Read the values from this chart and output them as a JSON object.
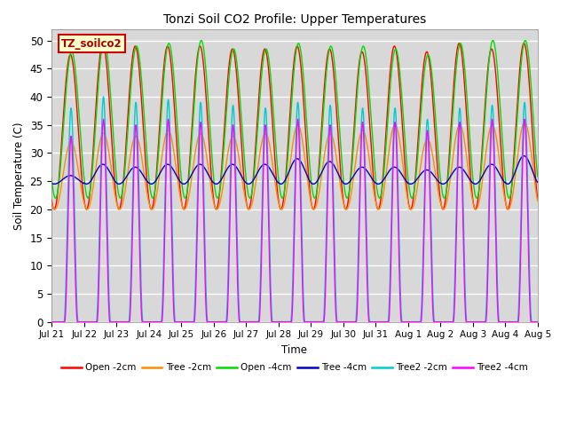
{
  "title": "Tonzi Soil CO2 Profile: Upper Temperatures",
  "xlabel": "Time",
  "ylabel": "Soil Temperature (C)",
  "ylim": [
    0,
    52
  ],
  "yticks": [
    0,
    5,
    10,
    15,
    20,
    25,
    30,
    35,
    40,
    45,
    50
  ],
  "background_color": "#d8d8d8",
  "series": [
    {
      "label": "Open -2cm",
      "color": "#ff0000"
    },
    {
      "label": "Tree -2cm",
      "color": "#ff8c00"
    },
    {
      "label": "Open -4cm",
      "color": "#00dd00"
    },
    {
      "label": "Tree -4cm",
      "color": "#0000cc"
    },
    {
      "label": "Tree2 -2cm",
      "color": "#00cccc"
    },
    {
      "label": "Tree2 -4cm",
      "color": "#ff00ff"
    }
  ],
  "xtick_labels": [
    "Jul 21",
    "Jul 22",
    "Jul 23",
    "Jul 24",
    "Jul 25",
    "Jul 26",
    "Jul 27",
    "Jul 28",
    "Jul 29",
    "Jul 30",
    "Jul 31",
    "Aug 1",
    "Aug 2",
    "Aug 3",
    "Aug 4",
    "Aug 5"
  ],
  "legend_label_box": "TZ_soilco2",
  "legend_label_box_facecolor": "#ffffcc",
  "legend_label_box_edgecolor": "#cc0000",
  "open2_peaks": [
    47.5,
    49.5,
    49.0,
    49.0,
    49.0,
    48.5,
    48.5,
    49.0,
    48.5,
    48.0,
    49.0,
    48.0,
    49.5,
    48.5,
    49.5
  ],
  "tree2_peaks": [
    32.0,
    33.5,
    33.0,
    34.0,
    33.5,
    33.0,
    33.5,
    35.0,
    33.5,
    34.0,
    35.0,
    32.5,
    35.0,
    35.0,
    35.5
  ],
  "open4_peaks": [
    48.0,
    50.0,
    49.0,
    49.5,
    50.0,
    48.5,
    48.5,
    49.5,
    49.0,
    49.0,
    48.5,
    47.5,
    49.5,
    50.0,
    50.0
  ],
  "tree4_peaks": [
    26.0,
    28.0,
    27.5,
    28.0,
    28.0,
    28.0,
    28.0,
    29.0,
    28.5,
    27.5,
    27.5,
    27.0,
    27.5,
    28.0,
    29.5
  ],
  "tree22_peaks": [
    38.0,
    40.0,
    39.0,
    39.5,
    39.0,
    38.5,
    38.0,
    39.0,
    38.5,
    38.0,
    38.0,
    36.0,
    38.0,
    38.5,
    39.0
  ],
  "tree24_peaks": [
    33.0,
    36.0,
    35.0,
    36.0,
    35.5,
    35.0,
    35.0,
    36.0,
    35.0,
    35.5,
    35.5,
    34.0,
    35.5,
    36.0,
    36.0
  ]
}
